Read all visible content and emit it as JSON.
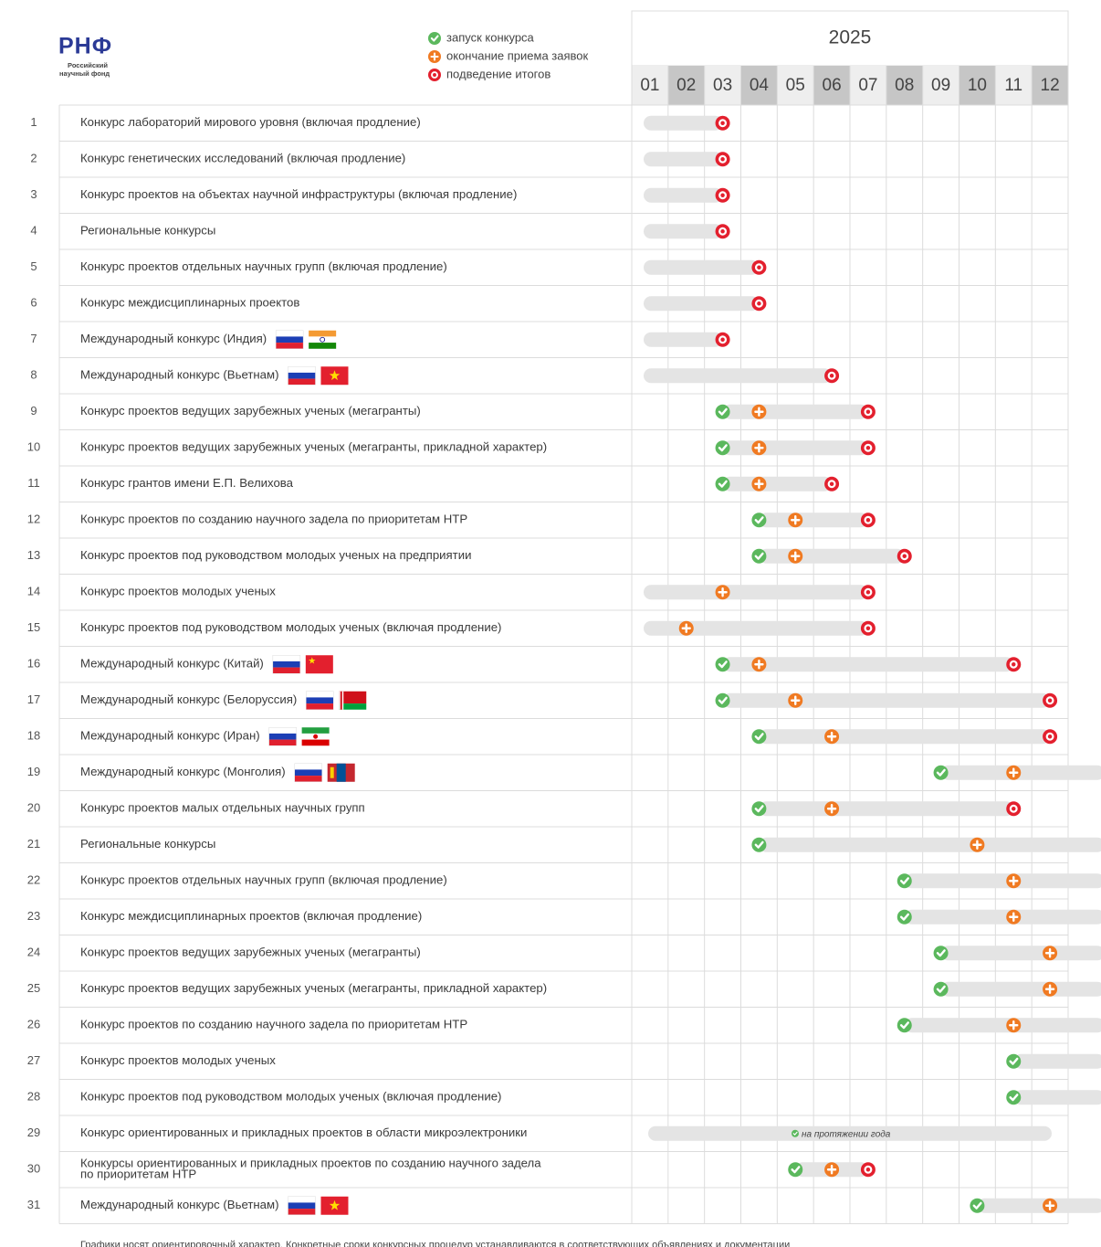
{
  "header": {
    "logo": "РНФ",
    "logo_sub": [
      "Российский",
      "научный фонд"
    ],
    "legend": [
      {
        "icon": "launch",
        "label": "запуск конкурса"
      },
      {
        "icon": "deadline",
        "label": "окончание приема заявок"
      },
      {
        "icon": "results",
        "label": "подведение итогов"
      }
    ],
    "year": "2025",
    "months": [
      "01",
      "02",
      "03",
      "04",
      "05",
      "06",
      "07",
      "08",
      "09",
      "10",
      "11",
      "12"
    ]
  },
  "rows": [
    {
      "num": "1",
      "name": [
        "Конкурс лабораторий мирового уровня (включая продление)"
      ],
      "results": 3,
      "from_start": true
    },
    {
      "num": "2",
      "name": [
        "Конкурс генетических исследований (включая продление)"
      ],
      "results": 3,
      "from_start": true
    },
    {
      "num": "3",
      "name": [
        "Конкурс проектов на объектах научной инфраструктуры (включая продление)"
      ],
      "results": 3,
      "from_start": true
    },
    {
      "num": "4",
      "name": [
        "Региональные конкурсы"
      ],
      "results": 3,
      "from_start": true
    },
    {
      "num": "5",
      "name": [
        "Конкурс проектов отдельных научных групп (включая продление)"
      ],
      "results": 4,
      "from_start": true
    },
    {
      "num": "6",
      "name": [
        "Конкурс междисциплинарных проектов"
      ],
      "results": 4,
      "from_start": true
    },
    {
      "num": "7",
      "name": [
        "Международный конкурс (Индия)"
      ],
      "flags": [
        "ru",
        "in"
      ],
      "results": 3,
      "from_start": true
    },
    {
      "num": "8",
      "name": [
        "Международный конкурс (Вьетнам)"
      ],
      "flags": [
        "ru",
        "vn"
      ],
      "results": 6,
      "from_start": true
    },
    {
      "num": "9",
      "name": [
        "Конкурс проектов ведущих зарубежных ученых (мегагранты)"
      ],
      "launch": 3,
      "deadline": 4,
      "results": 7
    },
    {
      "num": "10",
      "name": [
        "Конкурс проектов ведущих зарубежных ученых (мегагранты, прикладной характер)"
      ],
      "launch": 3,
      "deadline": 4,
      "results": 7
    },
    {
      "num": "11",
      "name": [
        "Конкурс грантов имени Е.П. Велихова"
      ],
      "launch": 3,
      "deadline": 4,
      "results": 6
    },
    {
      "num": "12",
      "name": [
        "Конкурс проектов по созданию научного задела по приоритетам НТР"
      ],
      "launch": 4,
      "deadline": 5,
      "results": 7
    },
    {
      "num": "13",
      "name": [
        "Конкурс проектов под руководством молодых ученых на предприятии"
      ],
      "launch": 4,
      "deadline": 5,
      "results": 8
    },
    {
      "num": "14",
      "name": [
        "Конкурс проектов молодых ученых"
      ],
      "deadline": 3,
      "results": 7,
      "from_start": true
    },
    {
      "num": "15",
      "name": [
        "Конкурс проектов под руководством молодых ученых (включая продление)"
      ],
      "deadline": 2,
      "results": 7,
      "from_start": true
    },
    {
      "num": "16",
      "name": [
        "Международный конкурс (Китай)"
      ],
      "flags": [
        "ru",
        "cn"
      ],
      "launch": 3,
      "deadline": 4,
      "results": 11
    },
    {
      "num": "17",
      "name": [
        "Международный конкурс (Белоруссия)"
      ],
      "flags": [
        "ru",
        "by"
      ],
      "launch": 3,
      "deadline": 5,
      "results": 12
    },
    {
      "num": "18",
      "name": [
        "Международный конкурс (Иран)"
      ],
      "flags": [
        "ru",
        "ir"
      ],
      "launch": 4,
      "deadline": 6,
      "results": 12
    },
    {
      "num": "19",
      "name": [
        "Международный конкурс (Монголия)"
      ],
      "flags": [
        "ru",
        "mn"
      ],
      "launch": 9,
      "deadline": 11,
      "continues": true
    },
    {
      "num": "20",
      "name": [
        "Конкурс проектов малых отдельных научных групп"
      ],
      "launch": 4,
      "deadline": 6,
      "results": 11
    },
    {
      "num": "21",
      "name": [
        "Региональные конкурсы"
      ],
      "launch": 4,
      "deadline": 10,
      "continues": true
    },
    {
      "num": "22",
      "name": [
        "Конкурс проектов отдельных научных групп (включая продление)"
      ],
      "launch": 8,
      "deadline": 11,
      "continues": true
    },
    {
      "num": "23",
      "name": [
        "Конкурс междисциплинарных проектов (включая продление)"
      ],
      "launch": 8,
      "deadline": 11,
      "continues": true
    },
    {
      "num": "24",
      "name": [
        "Конкурс проектов ведущих зарубежных ученых (мегагранты)"
      ],
      "launch": 9,
      "deadline": 12,
      "continues": true
    },
    {
      "num": "25",
      "name": [
        "Конкурс проектов ведущих зарубежных ученых (мегагранты, прикладной характер)"
      ],
      "launch": 9,
      "deadline": 12,
      "continues": true
    },
    {
      "num": "26",
      "name": [
        "Конкурс проектов по созданию научного задела по приоритетам НТР"
      ],
      "launch": 8,
      "deadline": 11,
      "continues": true
    },
    {
      "num": "27",
      "name": [
        "Конкурс проектов молодых ученых"
      ],
      "launch": 11,
      "continues": true
    },
    {
      "num": "28",
      "name": [
        "Конкурс проектов под руководством молодых ученых (включая продление)"
      ],
      "launch": 11,
      "continues": true
    },
    {
      "num": "29",
      "name": [
        "Конкурс ориентированных и прикладных проектов в области микроэлектроники"
      ],
      "all_year": true,
      "note": "на протяжении года"
    },
    {
      "num": "30",
      "name": [
        "Конкурсы ориентированных и прикладных проектов по созданию научного задела",
        "по приоритетам НТР"
      ],
      "launch": 5,
      "deadline": 6,
      "results": 7
    },
    {
      "num": "31",
      "name": [
        "Международный конкурс (Вьетнам)"
      ],
      "flags": [
        "ru",
        "vn"
      ],
      "launch": 10,
      "deadline": 12,
      "continues": true
    }
  ],
  "footer": "Графики носят ориентировочный характер. Конкретные сроки конкурсных процедур устанавливаются в соответствующих объявлениях и документации"
}
